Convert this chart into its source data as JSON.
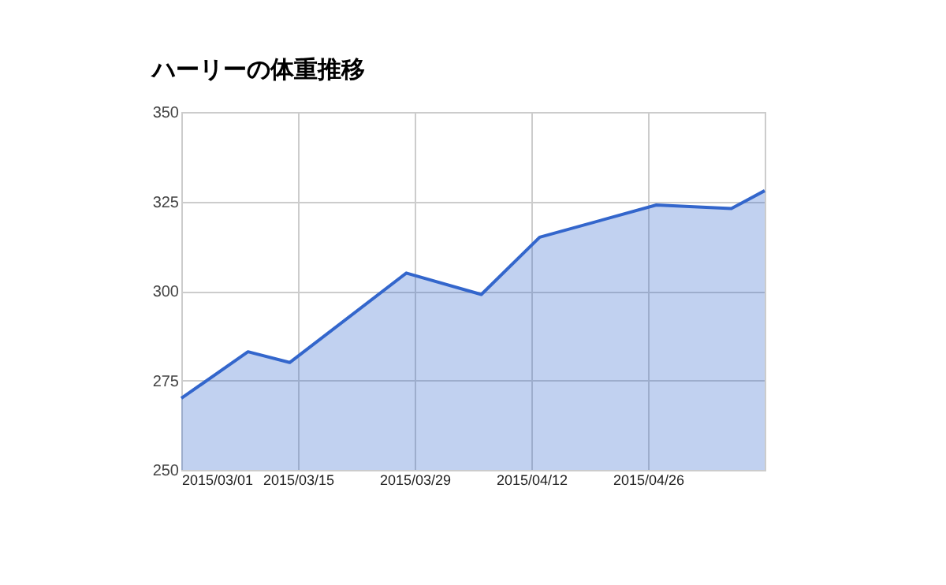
{
  "chart_data": {
    "type": "area",
    "title": "ハーリーの体重推移",
    "x": [
      "2015-03-01",
      "2015-03-09",
      "2015-03-14",
      "2015-03-28",
      "2015-04-06",
      "2015-04-13",
      "2015-04-27",
      "2015-05-06",
      "2015-05-10"
    ],
    "series": [
      {
        "color": "#3366cc",
        "values": [
          270,
          283,
          280,
          305,
          299,
          315,
          324,
          323,
          328
        ]
      }
    ],
    "xlim": [
      "2015-03-01",
      "2015-05-10"
    ],
    "xticks": [
      {
        "value": "2015-03-01",
        "label": "2015/03/01"
      },
      {
        "value": "2015-03-15",
        "label": "2015/03/15"
      },
      {
        "value": "2015-03-29",
        "label": "2015/03/29"
      },
      {
        "value": "2015-04-12",
        "label": "2015/04/12"
      },
      {
        "value": "2015-04-26",
        "label": "2015/04/26"
      }
    ],
    "ylim": [
      250,
      350
    ],
    "yticks": [
      250,
      275,
      300,
      325,
      350
    ],
    "grid": true
  }
}
